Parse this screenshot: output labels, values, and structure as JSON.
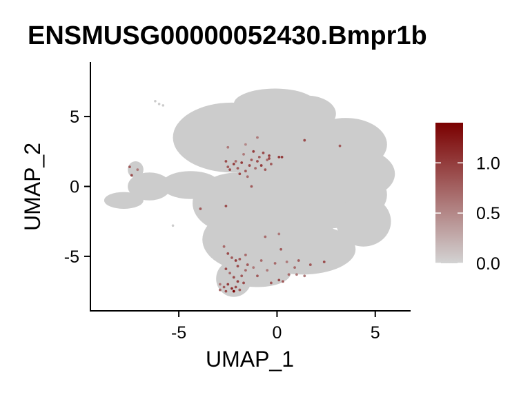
{
  "chart_data": {
    "type": "scatter",
    "title": "ENSMUSG00000052430.Bmpr1b",
    "xlabel": "UMAP_1",
    "ylabel": "UMAP_2",
    "xlim": [
      -9.5,
      6.8
    ],
    "ylim": [
      -8.9,
      8.9
    ],
    "xticks": [
      -5,
      0,
      5
    ],
    "xtick_labels": [
      "-5",
      "0",
      "5"
    ],
    "yticks": [
      -5,
      0,
      5
    ],
    "ytick_labels": [
      "-5",
      "0",
      "5"
    ],
    "grid": false,
    "legend": {
      "position": "right",
      "type": "colorbar",
      "range": [
        0,
        1.4
      ],
      "ticks": [
        0.0,
        0.5,
        1.0
      ],
      "tick_labels": [
        "0.0",
        "0.5",
        "1.0"
      ],
      "low_color": "#d3d3d3",
      "high_color": "#7a0000"
    },
    "background_color": "#cccccc",
    "expressing_cells": [
      {
        "x": -2.6,
        "y": 1.8,
        "v": 0.9
      },
      {
        "x": -2.5,
        "y": 1.4,
        "v": 0.8
      },
      {
        "x": -2.4,
        "y": 1.2,
        "v": 0.9
      },
      {
        "x": -2.2,
        "y": 1.6,
        "v": 1.0
      },
      {
        "x": -2.1,
        "y": 1.8,
        "v": 0.7
      },
      {
        "x": -2.0,
        "y": 1.3,
        "v": 0.8
      },
      {
        "x": -1.9,
        "y": 0.9,
        "v": 0.9
      },
      {
        "x": -1.8,
        "y": 1.7,
        "v": 1.0
      },
      {
        "x": -1.7,
        "y": 2.3,
        "v": 0.6
      },
      {
        "x": -1.6,
        "y": 1.1,
        "v": 0.8
      },
      {
        "x": -1.5,
        "y": 0.7,
        "v": 0.7
      },
      {
        "x": -1.4,
        "y": 1.5,
        "v": 0.9
      },
      {
        "x": -1.3,
        "y": 1.9,
        "v": 0.8
      },
      {
        "x": -1.2,
        "y": 2.5,
        "v": 1.0
      },
      {
        "x": -1.1,
        "y": 1.3,
        "v": 0.7
      },
      {
        "x": -1.0,
        "y": 1.8,
        "v": 0.9
      },
      {
        "x": -0.9,
        "y": 2.1,
        "v": 0.8
      },
      {
        "x": -0.8,
        "y": 1.5,
        "v": 1.0
      },
      {
        "x": -0.7,
        "y": 2.4,
        "v": 0.9
      },
      {
        "x": -0.6,
        "y": 1.2,
        "v": 0.8
      },
      {
        "x": -0.5,
        "y": 1.9,
        "v": 0.7
      },
      {
        "x": -0.4,
        "y": 2.2,
        "v": 1.0
      },
      {
        "x": -0.3,
        "y": 1.6,
        "v": 0.8
      },
      {
        "x": -0.4,
        "y": 2.0,
        "v": 0.9
      },
      {
        "x": 0.1,
        "y": 2.1,
        "v": 1.0
      },
      {
        "x": 0.25,
        "y": 2.1,
        "v": 1.0
      },
      {
        "x": 1.4,
        "y": 3.3,
        "v": 0.9
      },
      {
        "x": 3.2,
        "y": 2.9,
        "v": 0.8
      },
      {
        "x": -1.0,
        "y": 3.5,
        "v": 0.6
      },
      {
        "x": -1.6,
        "y": 3.0,
        "v": 0.5
      },
      {
        "x": -2.5,
        "y": 2.8,
        "v": 0.6
      },
      {
        "x": -1.3,
        "y": 0.0,
        "v": 0.8
      },
      {
        "x": -2.6,
        "y": -1.4,
        "v": 0.9
      },
      {
        "x": -3.9,
        "y": -1.6,
        "v": 0.8
      },
      {
        "x": -7.5,
        "y": 1.4,
        "v": 0.8
      },
      {
        "x": -7.1,
        "y": 1.2,
        "v": 0.6
      },
      {
        "x": -7.4,
        "y": 0.8,
        "v": 0.9
      },
      {
        "x": 0.1,
        "y": -3.4,
        "v": 0.6
      },
      {
        "x": 0.2,
        "y": -4.5,
        "v": 0.8
      },
      {
        "x": -2.7,
        "y": -4.3,
        "v": 0.7
      },
      {
        "x": -2.5,
        "y": -4.8,
        "v": 0.9
      },
      {
        "x": -2.3,
        "y": -5.1,
        "v": 0.8
      },
      {
        "x": -2.1,
        "y": -5.3,
        "v": 1.0
      },
      {
        "x": -2.0,
        "y": -5.7,
        "v": 0.9
      },
      {
        "x": -1.9,
        "y": -5.2,
        "v": 0.8
      },
      {
        "x": -2.6,
        "y": -5.9,
        "v": 0.9
      },
      {
        "x": -2.4,
        "y": -6.2,
        "v": 0.7
      },
      {
        "x": -2.2,
        "y": -6.5,
        "v": 0.9
      },
      {
        "x": -2.0,
        "y": -6.8,
        "v": 1.0
      },
      {
        "x": -1.8,
        "y": -6.4,
        "v": 0.8
      },
      {
        "x": -1.7,
        "y": -6.9,
        "v": 0.9
      },
      {
        "x": -2.5,
        "y": -7.0,
        "v": 1.0
      },
      {
        "x": -2.7,
        "y": -7.2,
        "v": 0.8
      },
      {
        "x": -2.3,
        "y": -7.3,
        "v": 1.1
      },
      {
        "x": -2.1,
        "y": -7.2,
        "v": 0.9
      },
      {
        "x": -2.2,
        "y": -7.5,
        "v": 1.4
      },
      {
        "x": -1.9,
        "y": -7.4,
        "v": 0.8
      },
      {
        "x": -2.9,
        "y": -7.4,
        "v": 0.7
      },
      {
        "x": -2.6,
        "y": -7.5,
        "v": 0.9
      },
      {
        "x": -1.6,
        "y": -6.0,
        "v": 0.7
      },
      {
        "x": -1.5,
        "y": -5.6,
        "v": 0.8
      },
      {
        "x": -1.2,
        "y": -5.8,
        "v": 0.6
      },
      {
        "x": -1.0,
        "y": -6.4,
        "v": 0.8
      },
      {
        "x": -0.8,
        "y": -5.3,
        "v": 0.7
      },
      {
        "x": -0.5,
        "y": -6.0,
        "v": 0.6
      },
      {
        "x": -0.3,
        "y": -6.9,
        "v": 0.8
      },
      {
        "x": -0.1,
        "y": -5.5,
        "v": 0.7
      },
      {
        "x": 0.1,
        "y": -6.7,
        "v": 0.9
      },
      {
        "x": 0.3,
        "y": -6.8,
        "v": 0.8
      },
      {
        "x": 0.5,
        "y": -5.4,
        "v": 0.6
      },
      {
        "x": 0.9,
        "y": -5.8,
        "v": 0.7
      },
      {
        "x": 1.1,
        "y": -5.3,
        "v": 0.8
      },
      {
        "x": 1.4,
        "y": -6.4,
        "v": 0.6
      },
      {
        "x": 1.7,
        "y": -5.6,
        "v": 0.8
      },
      {
        "x": 2.4,
        "y": -5.4,
        "v": 0.9
      },
      {
        "x": 1.0,
        "y": -6.3,
        "v": 0.6
      },
      {
        "x": -1.6,
        "y": -4.9,
        "v": 0.7
      },
      {
        "x": -2.9,
        "y": -7.0,
        "v": 0.6
      },
      {
        "x": -0.6,
        "y": -3.6,
        "v": 0.7
      },
      {
        "x": 0.6,
        "y": -6.3,
        "v": 0.7
      }
    ]
  }
}
